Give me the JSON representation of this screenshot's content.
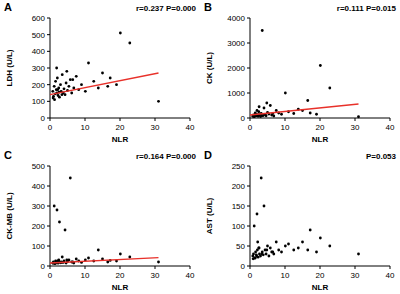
{
  "chart_data": [
    {
      "type": "scatter",
      "title": "A",
      "annotation": "r=0.237 P=0.000",
      "x_label": "NLR",
      "y_label": "LDH (U/L)",
      "xlim": [
        0,
        40
      ],
      "xticks": [
        0,
        10,
        20,
        30,
        40
      ],
      "ylim": [
        0,
        600
      ],
      "yticks": [
        0,
        100,
        200,
        300,
        400,
        500,
        600
      ],
      "color": "#000000",
      "marker": "circle",
      "x": [
        0.8,
        1.0,
        1.2,
        1.5,
        1.6,
        1.8,
        2.0,
        2.1,
        2.3,
        2.5,
        2.7,
        3.0,
        3.2,
        3.5,
        3.8,
        4.0,
        4.3,
        4.6,
        5.0,
        5.4,
        5.8,
        6.2,
        6.8,
        7.5,
        8.2,
        9.0,
        10.1,
        11.0,
        12.5,
        13.8,
        15.0,
        16.5,
        17.2,
        19.0,
        20.1,
        22.8,
        31.0,
        1.3,
        1.9,
        2.6,
        3.4,
        0.9,
        2.2,
        4.8,
        6.5
      ],
      "values": [
        160,
        130,
        190,
        145,
        220,
        170,
        150,
        240,
        135,
        180,
        125,
        200,
        160,
        260,
        150,
        175,
        140,
        210,
        165,
        190,
        230,
        150,
        180,
        250,
        170,
        200,
        160,
        330,
        220,
        180,
        270,
        190,
        240,
        200,
        510,
        450,
        100,
        110,
        300,
        155,
        140,
        120,
        170,
        280,
        230
      ],
      "trendline": {
        "x": [
          0,
          31
        ],
        "values": [
          140,
          270
        ],
        "color": "#e8312a"
      }
    },
    {
      "type": "scatter",
      "title": "B",
      "annotation": "r=0.111 P=0.015",
      "x_label": "NLR",
      "y_label": "CK (U/L)",
      "xlim": [
        0,
        40
      ],
      "xticks": [
        0,
        10,
        20,
        30,
        40
      ],
      "ylim": [
        0,
        4000
      ],
      "yticks": [
        0,
        1000,
        2000,
        3000,
        4000
      ],
      "color": "#000000",
      "marker": "circle",
      "x": [
        0.8,
        1.0,
        1.2,
        1.5,
        1.6,
        1.8,
        2.0,
        2.1,
        2.3,
        2.5,
        2.7,
        3.0,
        3.2,
        3.5,
        3.8,
        4.0,
        4.3,
        4.6,
        5.0,
        5.4,
        5.8,
        6.2,
        6.8,
        7.5,
        8.2,
        9.0,
        10.1,
        11.0,
        12.5,
        13.8,
        15.0,
        16.5,
        17.2,
        19.0,
        20.1,
        22.8,
        31.0,
        1.3,
        1.9,
        2.6,
        3.4,
        0.9,
        2.2,
        4.8,
        6.5
      ],
      "values": [
        80,
        120,
        60,
        200,
        150,
        90,
        300,
        110,
        70,
        250,
        130,
        60,
        180,
        3500,
        100,
        400,
        140,
        90,
        220,
        160,
        500,
        120,
        80,
        300,
        200,
        150,
        1000,
        250,
        180,
        350,
        300,
        700,
        200,
        150,
        2100,
        1200,
        50,
        60,
        100,
        450,
        90,
        70,
        130,
        600,
        180
      ],
      "trendline": {
        "x": [
          0,
          31
        ],
        "values": [
          120,
          560
        ],
        "color": "#e8312a"
      }
    },
    {
      "type": "scatter",
      "title": "C",
      "annotation": "r=0.164 P=0.000",
      "x_label": "NLR",
      "y_label": "CK-MB (U/L)",
      "xlim": [
        0,
        40
      ],
      "xticks": [
        0,
        10,
        20,
        30,
        40
      ],
      "ylim": [
        0,
        500
      ],
      "yticks": [
        0,
        100,
        200,
        300,
        400,
        500
      ],
      "color": "#000000",
      "marker": "circle",
      "x": [
        0.8,
        1.0,
        1.2,
        1.5,
        1.6,
        1.8,
        2.0,
        2.1,
        2.3,
        2.5,
        2.7,
        3.0,
        3.2,
        3.5,
        3.8,
        4.0,
        4.3,
        4.6,
        5.0,
        5.4,
        5.8,
        6.2,
        6.8,
        7.5,
        8.2,
        9.0,
        10.1,
        11.0,
        12.5,
        13.8,
        15.0,
        16.5,
        17.2,
        19.0,
        20.1,
        22.8,
        31.0,
        1.3,
        1.9,
        2.6,
        3.4,
        0.9,
        2.2,
        4.8,
        6.5
      ],
      "values": [
        15,
        20,
        300,
        12,
        25,
        18,
        280,
        22,
        14,
        30,
        220,
        16,
        20,
        45,
        18,
        25,
        180,
        15,
        22,
        30,
        440,
        20,
        15,
        35,
        25,
        18,
        30,
        40,
        25,
        80,
        35,
        20,
        28,
        25,
        60,
        45,
        20,
        12,
        16,
        22,
        18,
        14,
        25,
        30,
        20
      ],
      "trendline": {
        "x": [
          0,
          31
        ],
        "values": [
          15,
          42
        ],
        "color": "#e8312a"
      }
    },
    {
      "type": "scatter",
      "title": "D",
      "annotation": "P=0.053",
      "x_label": "NLR",
      "y_label": "AST (U/L)",
      "xlim": [
        0,
        40
      ],
      "xticks": [
        0,
        10,
        20,
        30,
        40
      ],
      "ylim": [
        0,
        250
      ],
      "yticks": [
        0,
        50,
        100,
        150,
        200,
        250
      ],
      "color": "#000000",
      "marker": "circle",
      "x": [
        0.8,
        1.0,
        1.2,
        1.5,
        1.6,
        1.8,
        2.0,
        2.1,
        2.3,
        2.5,
        2.7,
        3.0,
        3.2,
        3.5,
        3.8,
        4.0,
        4.3,
        4.6,
        5.0,
        5.4,
        5.8,
        6.2,
        6.8,
        7.5,
        8.2,
        9.0,
        10.1,
        11.0,
        12.5,
        13.8,
        15.0,
        16.5,
        17.2,
        19.0,
        20.1,
        22.8,
        31.0,
        1.3,
        1.9,
        2.6,
        3.4,
        0.9,
        2.2,
        4.8,
        6.5
      ],
      "values": [
        25,
        30,
        100,
        20,
        35,
        28,
        130,
        40,
        22,
        45,
        30,
        25,
        220,
        35,
        28,
        150,
        40,
        30,
        50,
        25,
        45,
        35,
        30,
        60,
        40,
        35,
        50,
        55,
        40,
        45,
        60,
        40,
        90,
        35,
        70,
        50,
        30,
        20,
        25,
        45,
        30,
        18,
        60,
        40,
        35
      ]
    }
  ]
}
